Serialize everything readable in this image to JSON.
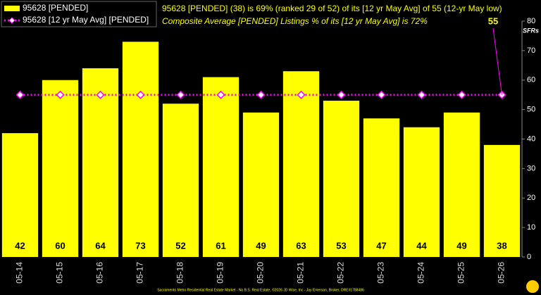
{
  "chart_data": {
    "type": "bar",
    "annotation": "95628 [PENDED] (38) is 69% (ranked 29 of 52) of its [12 yr May Avg] of 55 (12-yr May low)",
    "subtitle": "Composite Average [PENDED] Listings % of its [12 yr May Avg] is 72%",
    "y_label": "SFRs",
    "footer": "Sacramento Metro Residential Real Estate Market - No B.S. Real Estate, ©2026 JD Wise, Inc - Jay Emerson, Broker, DRE#1788486",
    "categories": [
      "05-14",
      "05-15",
      "05-16",
      "05-17",
      "05-18",
      "05-19",
      "05-20",
      "05-21",
      "05-22",
      "05-23",
      "05-24",
      "05-25",
      "05-26"
    ],
    "series": [
      {
        "name": "95628 [PENDED]",
        "type": "bar",
        "color": "#ffff00",
        "values": [
          42,
          60,
          64,
          73,
          52,
          61,
          49,
          63,
          53,
          47,
          44,
          49,
          38
        ]
      },
      {
        "name": "95628 [12 yr May Avg] [PENDED]",
        "type": "line",
        "color": "#ff00ff",
        "values": [
          55,
          55,
          55,
          55,
          55,
          55,
          55,
          55,
          55,
          55,
          55,
          55,
          55
        ]
      }
    ],
    "ylim": [
      0,
      80
    ],
    "yticks": [
      0,
      10,
      20,
      30,
      40,
      50,
      60,
      70,
      80
    ],
    "grid": false,
    "legend": "upper left"
  }
}
